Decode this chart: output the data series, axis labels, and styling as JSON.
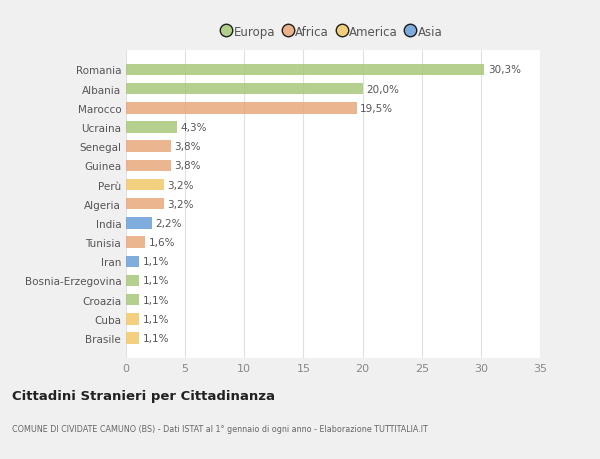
{
  "countries": [
    "Romania",
    "Albania",
    "Marocco",
    "Ucraina",
    "Senegal",
    "Guinea",
    "Perù",
    "Algeria",
    "India",
    "Tunisia",
    "Iran",
    "Bosnia-Erzegovina",
    "Croazia",
    "Cuba",
    "Brasile"
  ],
  "values": [
    30.3,
    20.0,
    19.5,
    4.3,
    3.8,
    3.8,
    3.2,
    3.2,
    2.2,
    1.6,
    1.1,
    1.1,
    1.1,
    1.1,
    1.1
  ],
  "labels": [
    "30,3%",
    "20,0%",
    "19,5%",
    "4,3%",
    "3,8%",
    "3,8%",
    "3,2%",
    "3,2%",
    "2,2%",
    "1,6%",
    "1,1%",
    "1,1%",
    "1,1%",
    "1,1%",
    "1,1%"
  ],
  "colors": [
    "#a8c87a",
    "#a8c87a",
    "#e8a87c",
    "#a8c87a",
    "#e8a87c",
    "#e8a87c",
    "#f0c86a",
    "#e8a87c",
    "#6a9fd8",
    "#e8a87c",
    "#6a9fd8",
    "#a8c87a",
    "#a8c87a",
    "#f0c86a",
    "#f0c86a"
  ],
  "legend_labels": [
    "Europa",
    "Africa",
    "America",
    "Asia"
  ],
  "legend_colors": [
    "#a8c87a",
    "#e8a87c",
    "#f0c86a",
    "#6a9fd8"
  ],
  "title": "Cittadini Stranieri per Cittadinanza",
  "subtitle": "COMUNE DI CIVIDATE CAMUNO (BS) - Dati ISTAT al 1° gennaio di ogni anno - Elaborazione TUTTITALIA.IT",
  "xlim": [
    0,
    35
  ],
  "xticks": [
    0,
    5,
    10,
    15,
    20,
    25,
    30,
    35
  ],
  "bg_color": "#f0f0f0",
  "plot_bg_color": "#ffffff",
  "grid_color": "#e0e0e0",
  "bar_height": 0.6,
  "label_fontsize": 7.5,
  "ytick_fontsize": 7.5,
  "xtick_fontsize": 8
}
